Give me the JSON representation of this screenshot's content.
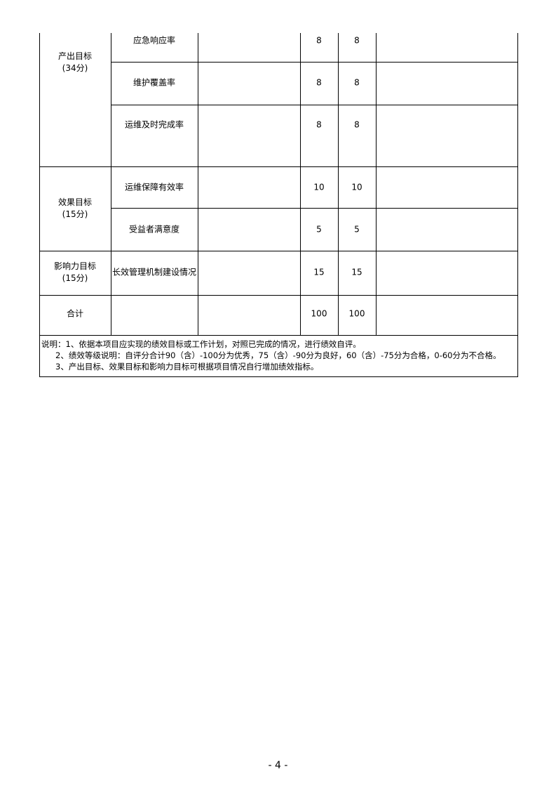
{
  "rows": [
    {
      "category": "产出目标",
      "category_score": "(34分)",
      "indicator": "应急响应率",
      "plan": "",
      "full_score": "8",
      "self_score": "8",
      "remark": ""
    },
    {
      "indicator": "维护覆盖率",
      "plan": "",
      "full_score": "8",
      "self_score": "8",
      "remark": ""
    },
    {
      "indicator": "运维及时完成率",
      "plan": "",
      "full_score": "8",
      "self_score": "8",
      "remark": ""
    },
    {
      "category": "效果目标",
      "category_score": "(15分)",
      "indicator": "运维保障有效率",
      "plan": "",
      "full_score": "10",
      "self_score": "10",
      "remark": ""
    },
    {
      "indicator": "受益者满意度",
      "plan": "",
      "full_score": "5",
      "self_score": "5",
      "remark": ""
    },
    {
      "category": "影响力目标",
      "category_score": "(15分)",
      "indicator": "长效管理机制建设情况",
      "plan": "",
      "full_score": "15",
      "self_score": "15",
      "remark": ""
    }
  ],
  "total": {
    "label": "合计",
    "full_score": "100",
    "self_score": "100"
  },
  "notes": [
    "说明：1、依据本项目应实现的绩效目标或工作计划，对照已完成的情况，进行绩效自评。",
    "2、绩效等级说明：自评分合计90（含）-100分为优秀，75（含）-90分为良好，60（含）-75分为合格，0-60分为不合格。",
    "3、产出目标、效果目标和影响力目标可根据项目情况自行增加绩效指标。"
  ],
  "page_number": "- 4 -"
}
